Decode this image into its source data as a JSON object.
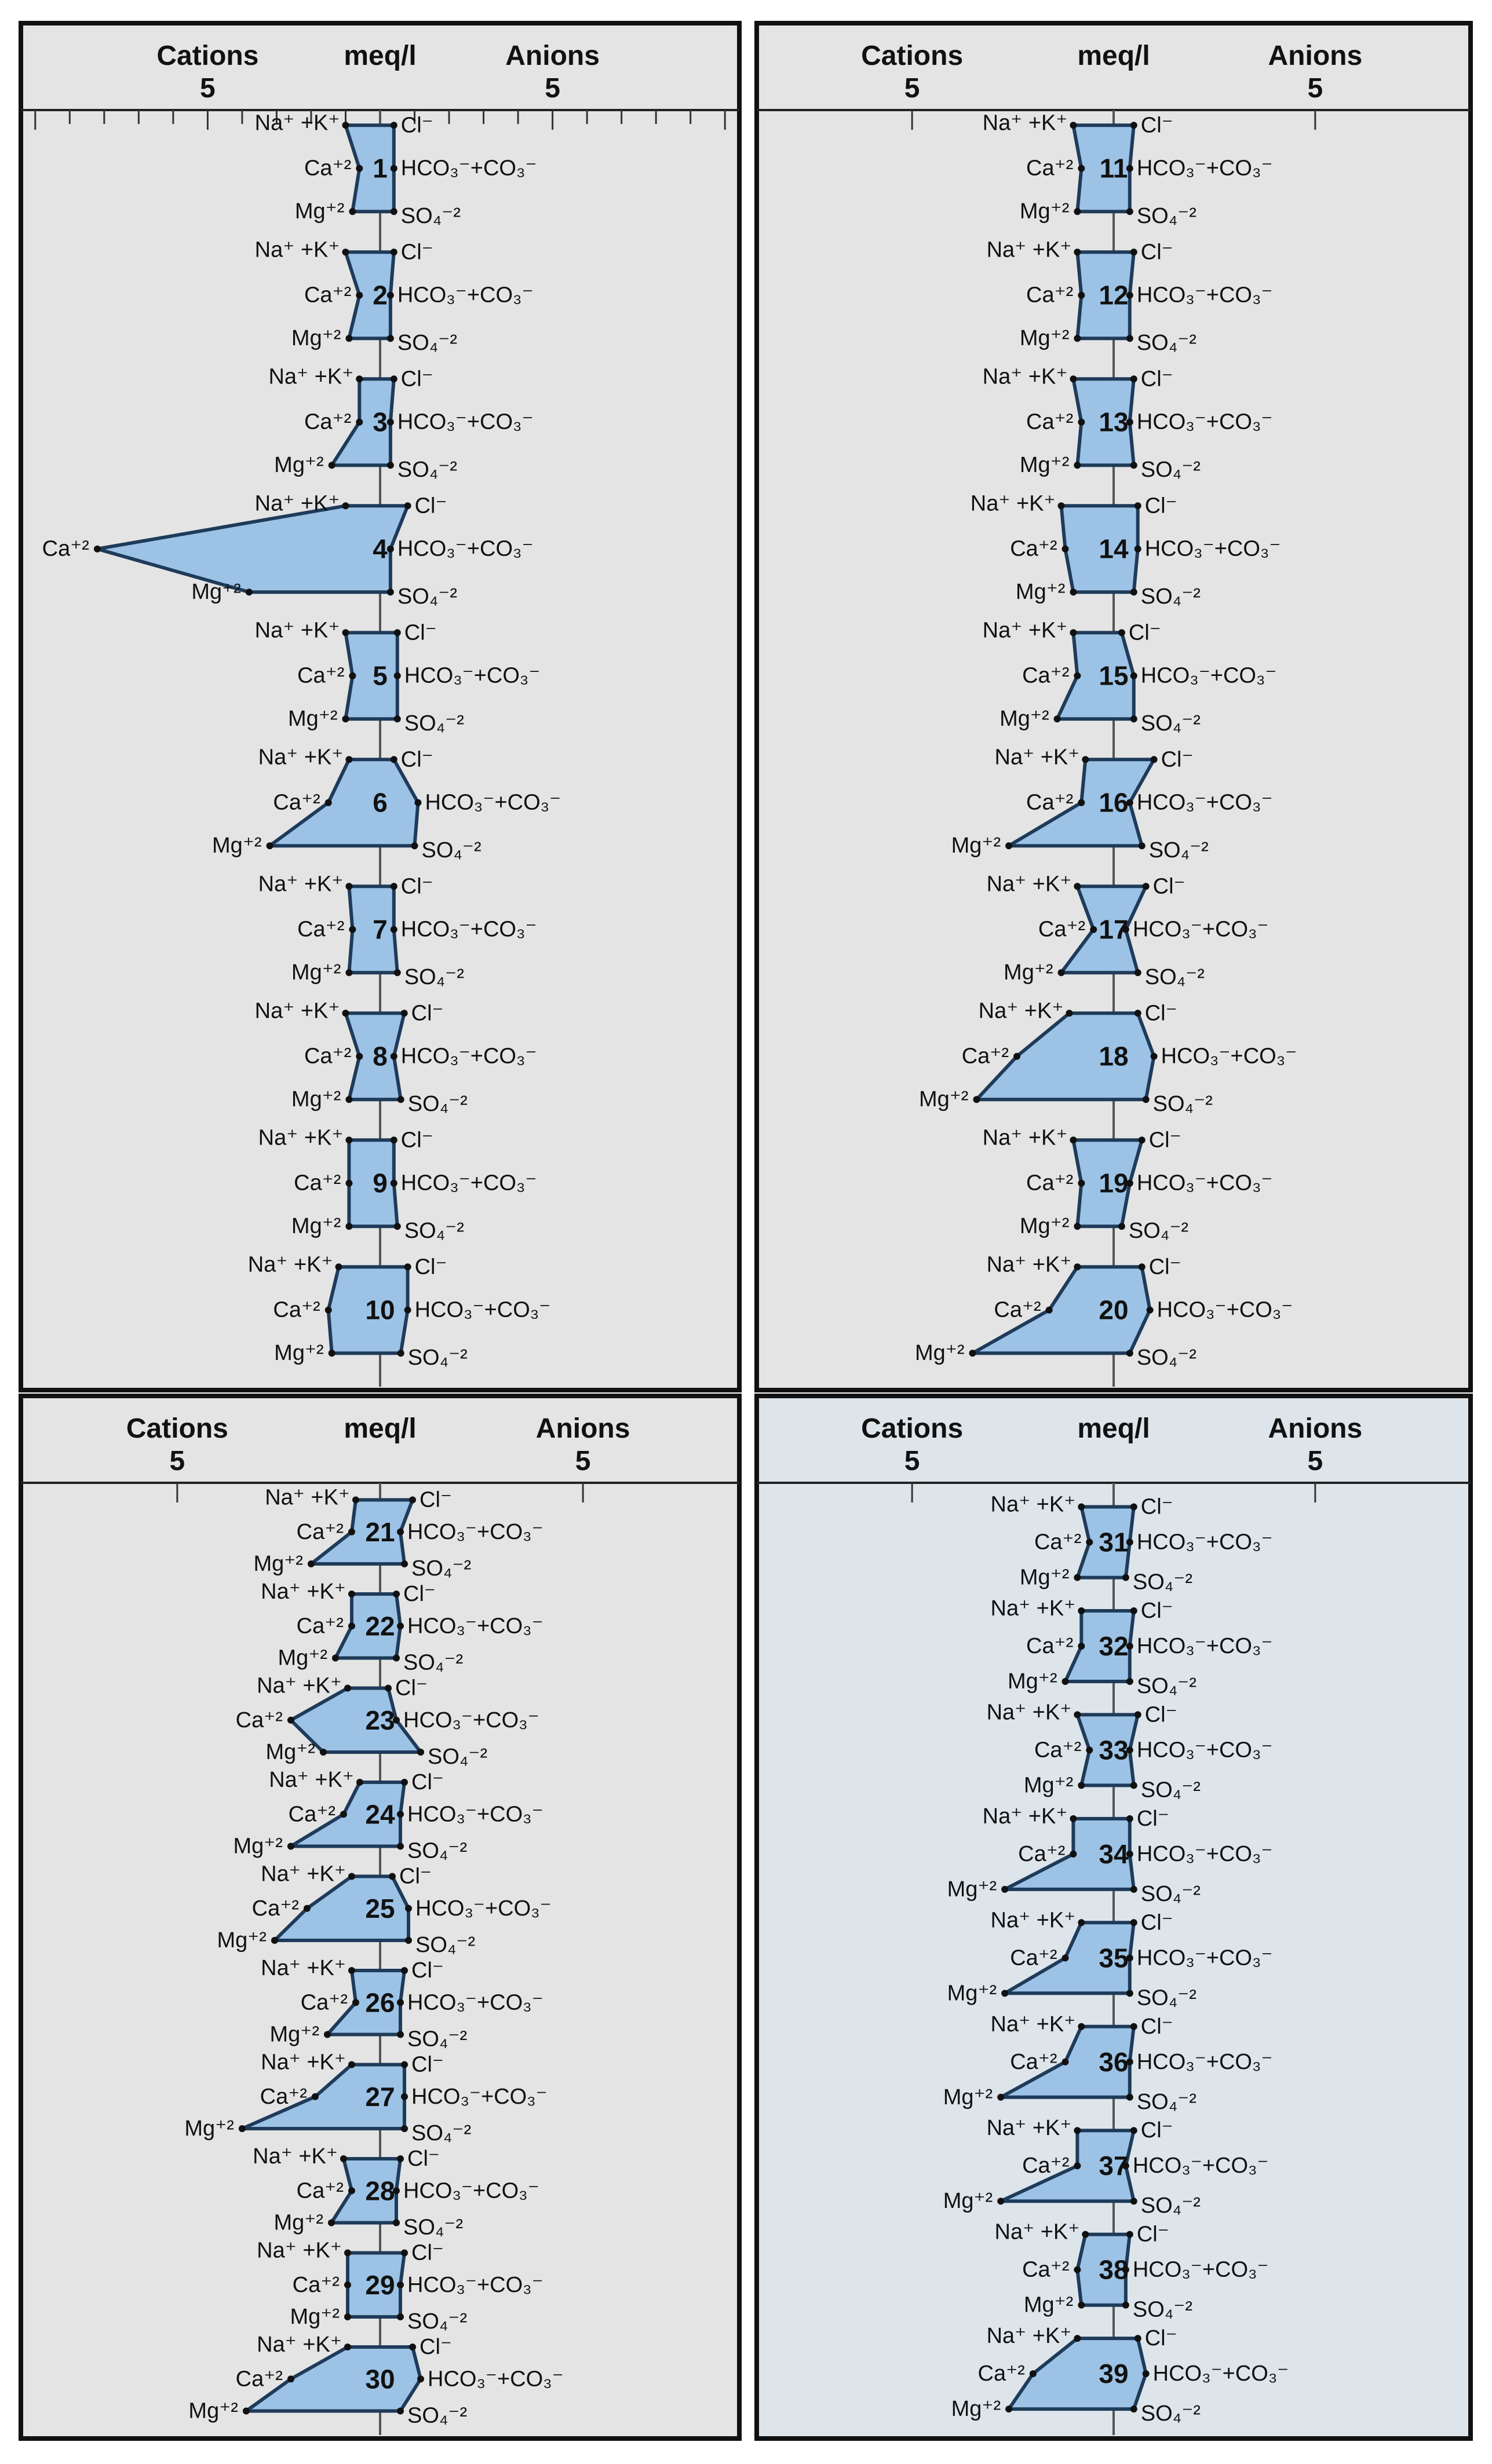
{
  "chart_data": [
    {
      "type": "stiff",
      "title": "",
      "header": {
        "cations": "Cations",
        "unit": "meq/l",
        "anions": "Anions",
        "tick_left": "5",
        "tick_right": "5"
      },
      "xlim": [
        -10,
        10
      ],
      "labels": {
        "na_k": "Na⁺ +K⁺",
        "ca": "Ca⁺²",
        "mg": "Mg⁺²",
        "cl": "Cl⁻",
        "hco3": "HCO₃⁻+CO₃⁻",
        "so4": "SO₄⁻²"
      },
      "samples": [
        {
          "id": "1",
          "na_k": 1.0,
          "ca": 0.6,
          "mg": 0.8,
          "cl": 0.4,
          "hco3": 0.4,
          "so4": 0.4
        },
        {
          "id": "2",
          "na_k": 1.0,
          "ca": 0.6,
          "mg": 0.9,
          "cl": 0.4,
          "hco3": 0.3,
          "so4": 0.3
        },
        {
          "id": "3",
          "na_k": 0.6,
          "ca": 0.6,
          "mg": 1.4,
          "cl": 0.4,
          "hco3": 0.3,
          "so4": 0.3
        },
        {
          "id": "4",
          "na_k": 1.0,
          "ca": 8.2,
          "mg": 3.8,
          "cl": 0.8,
          "hco3": 0.3,
          "so4": 0.3
        },
        {
          "id": "5",
          "na_k": 1.0,
          "ca": 0.8,
          "mg": 1.0,
          "cl": 0.5,
          "hco3": 0.5,
          "so4": 0.5
        },
        {
          "id": "6",
          "na_k": 0.9,
          "ca": 1.5,
          "mg": 3.2,
          "cl": 0.4,
          "hco3": 1.1,
          "so4": 1.0
        },
        {
          "id": "7",
          "na_k": 0.9,
          "ca": 0.8,
          "mg": 0.9,
          "cl": 0.4,
          "hco3": 0.4,
          "so4": 0.5
        },
        {
          "id": "8",
          "na_k": 1.0,
          "ca": 0.6,
          "mg": 0.9,
          "cl": 0.7,
          "hco3": 0.4,
          "so4": 0.6
        },
        {
          "id": "9",
          "na_k": 0.9,
          "ca": 0.9,
          "mg": 0.9,
          "cl": 0.4,
          "hco3": 0.4,
          "so4": 0.5
        },
        {
          "id": "10",
          "na_k": 1.2,
          "ca": 1.5,
          "mg": 1.4,
          "cl": 0.8,
          "hco3": 0.8,
          "so4": 0.6
        }
      ]
    },
    {
      "type": "stiff",
      "title": "",
      "header": {
        "cations": "Cations",
        "unit": "meq/l",
        "anions": "Anions",
        "tick_left": "5",
        "tick_right": "5"
      },
      "xlim": [
        -8.5,
        8.5
      ],
      "labels": {
        "na_k": "Na⁺ +K⁺",
        "ca": "Ca⁺²",
        "mg": "Mg⁺²",
        "cl": "Cl⁻",
        "hco3": "HCO₃⁻+CO₃⁻",
        "so4": "SO₄⁻²"
      },
      "samples": [
        {
          "id": "11",
          "na_k": 1.0,
          "ca": 0.8,
          "mg": 0.9,
          "cl": 0.5,
          "hco3": 0.4,
          "so4": 0.4
        },
        {
          "id": "12",
          "na_k": 0.9,
          "ca": 0.8,
          "mg": 0.9,
          "cl": 0.5,
          "hco3": 0.4,
          "so4": 0.4
        },
        {
          "id": "13",
          "na_k": 1.0,
          "ca": 0.8,
          "mg": 0.9,
          "cl": 0.5,
          "hco3": 0.4,
          "so4": 0.5
        },
        {
          "id": "14",
          "na_k": 1.3,
          "ca": 1.2,
          "mg": 1.0,
          "cl": 0.6,
          "hco3": 0.6,
          "so4": 0.5
        },
        {
          "id": "15",
          "na_k": 1.0,
          "ca": 0.9,
          "mg": 1.4,
          "cl": 0.2,
          "hco3": 0.5,
          "so4": 0.5
        },
        {
          "id": "16",
          "na_k": 0.7,
          "ca": 0.8,
          "mg": 2.6,
          "cl": 1.0,
          "hco3": 0.4,
          "so4": 0.7
        },
        {
          "id": "17",
          "na_k": 0.9,
          "ca": 0.5,
          "mg": 1.3,
          "cl": 0.8,
          "hco3": 0.3,
          "so4": 0.6
        },
        {
          "id": "18",
          "na_k": 1.1,
          "ca": 2.4,
          "mg": 3.4,
          "cl": 0.6,
          "hco3": 1.0,
          "so4": 0.8
        },
        {
          "id": "19",
          "na_k": 1.0,
          "ca": 0.8,
          "mg": 0.9,
          "cl": 0.7,
          "hco3": 0.4,
          "so4": 0.2
        },
        {
          "id": "20",
          "na_k": 0.9,
          "ca": 1.6,
          "mg": 3.5,
          "cl": 0.7,
          "hco3": 0.9,
          "so4": 0.4
        }
      ]
    },
    {
      "type": "stiff",
      "title": "",
      "header": {
        "cations": "Cations",
        "unit": "meq/l",
        "anions": "Anions",
        "tick_left": "5",
        "tick_right": "5"
      },
      "xlim": [
        -8.5,
        8.5
      ],
      "labels": {
        "na_k": "Na⁺ +K⁺",
        "ca": "Ca⁺²",
        "mg": "Mg⁺²",
        "cl": "Cl⁻",
        "hco3": "HCO₃⁻+CO₃⁻",
        "so4": "SO₄⁻²"
      },
      "samples": [
        {
          "id": "21",
          "na_k": 0.6,
          "ca": 0.7,
          "mg": 1.7,
          "cl": 0.8,
          "hco3": 0.5,
          "so4": 0.6
        },
        {
          "id": "22",
          "na_k": 0.7,
          "ca": 0.7,
          "mg": 1.1,
          "cl": 0.4,
          "hco3": 0.5,
          "so4": 0.4
        },
        {
          "id": "23",
          "na_k": 0.8,
          "ca": 2.2,
          "mg": 1.4,
          "cl": 0.2,
          "hco3": 0.4,
          "so4": 1.0
        },
        {
          "id": "24",
          "na_k": 0.5,
          "ca": 0.9,
          "mg": 2.2,
          "cl": 0.6,
          "hco3": 0.5,
          "so4": 0.5
        },
        {
          "id": "25",
          "na_k": 0.7,
          "ca": 1.8,
          "mg": 2.6,
          "cl": 0.3,
          "hco3": 0.7,
          "so4": 0.7
        },
        {
          "id": "26",
          "na_k": 0.7,
          "ca": 0.6,
          "mg": 1.3,
          "cl": 0.6,
          "hco3": 0.5,
          "so4": 0.5
        },
        {
          "id": "27",
          "na_k": 0.7,
          "ca": 1.6,
          "mg": 3.4,
          "cl": 0.6,
          "hco3": 0.6,
          "so4": 0.6
        },
        {
          "id": "28",
          "na_k": 0.9,
          "ca": 0.7,
          "mg": 1.2,
          "cl": 0.5,
          "hco3": 0.4,
          "so4": 0.4
        },
        {
          "id": "29",
          "na_k": 0.8,
          "ca": 0.8,
          "mg": 0.8,
          "cl": 0.6,
          "hco3": 0.5,
          "so4": 0.5
        },
        {
          "id": "30",
          "na_k": 0.8,
          "ca": 2.2,
          "mg": 3.3,
          "cl": 0.8,
          "hco3": 1.0,
          "so4": 0.5
        }
      ]
    },
    {
      "type": "stiff",
      "title": "",
      "header": {
        "cations": "Cations",
        "unit": "meq/l",
        "anions": "Anions",
        "tick_left": "5",
        "tick_right": "5"
      },
      "xlim": [
        -8.5,
        8.5
      ],
      "labels": {
        "na_k": "Na⁺ +K⁺",
        "ca": "Ca⁺²",
        "mg": "Mg⁺²",
        "cl": "Cl⁻",
        "hco3": "HCO₃⁻+CO₃⁻",
        "so4": "SO₄⁻²"
      },
      "samples": [
        {
          "id": "31",
          "na_k": 0.8,
          "ca": 0.6,
          "mg": 0.9,
          "cl": 0.5,
          "hco3": 0.4,
          "so4": 0.3
        },
        {
          "id": "32",
          "na_k": 0.8,
          "ca": 0.8,
          "mg": 1.2,
          "cl": 0.5,
          "hco3": 0.4,
          "so4": 0.4
        },
        {
          "id": "33",
          "na_k": 0.9,
          "ca": 0.6,
          "mg": 0.8,
          "cl": 0.6,
          "hco3": 0.4,
          "so4": 0.5
        },
        {
          "id": "34",
          "na_k": 1.0,
          "ca": 1.0,
          "mg": 2.7,
          "cl": 0.4,
          "hco3": 0.4,
          "so4": 0.5
        },
        {
          "id": "35",
          "na_k": 0.8,
          "ca": 1.2,
          "mg": 2.7,
          "cl": 0.5,
          "hco3": 0.4,
          "so4": 0.4
        },
        {
          "id": "36",
          "na_k": 0.8,
          "ca": 1.2,
          "mg": 2.8,
          "cl": 0.5,
          "hco3": 0.4,
          "so4": 0.4
        },
        {
          "id": "37",
          "na_k": 0.9,
          "ca": 0.9,
          "mg": 2.8,
          "cl": 0.5,
          "hco3": 0.3,
          "so4": 0.5
        },
        {
          "id": "38",
          "na_k": 0.7,
          "ca": 0.9,
          "mg": 0.8,
          "cl": 0.4,
          "hco3": 0.3,
          "so4": 0.3
        },
        {
          "id": "39",
          "na_k": 0.9,
          "ca": 2.0,
          "mg": 2.6,
          "cl": 0.6,
          "hco3": 0.8,
          "so4": 0.5
        }
      ]
    }
  ]
}
